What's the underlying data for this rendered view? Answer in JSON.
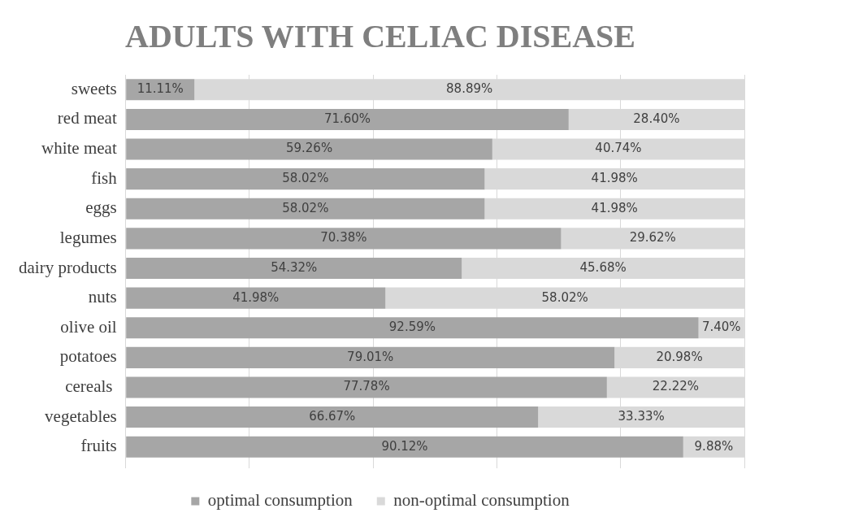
{
  "chart_data": {
    "type": "bar",
    "title": "ADULTS WITH CELIAC DISEASE",
    "orientation": "horizontal",
    "stacked": true,
    "categories": [
      "sweets",
      "red meat",
      "white meat",
      "fish",
      "eggs",
      "legumes",
      "dairy products",
      "nuts",
      "olive oil",
      "potatoes",
      "cereals ",
      "vegetables",
      "fruits"
    ],
    "series": [
      {
        "name": "optimal consumption",
        "color": "#a6a6a6",
        "values": [
          11.11,
          71.6,
          59.26,
          58.02,
          58.02,
          70.38,
          54.32,
          41.98,
          92.59,
          79.01,
          77.78,
          66.67,
          90.12
        ],
        "value_labels": [
          "11.11%",
          "71.60%",
          "59.26%",
          "58.02%",
          "58.02%",
          "70.38%",
          "54.32%",
          "41.98%",
          "92.59%",
          "79.01%",
          "77.78%",
          "66.67%",
          "90.12%"
        ]
      },
      {
        "name": "non-optimal consumption",
        "color": "#d9d9d9",
        "values": [
          88.89,
          28.4,
          40.74,
          41.98,
          41.98,
          29.62,
          45.68,
          58.02,
          7.4,
          20.98,
          22.22,
          33.33,
          9.88
        ],
        "value_labels": [
          "88.89%",
          "28.40%",
          "40.74%",
          "41.98%",
          "41.98%",
          "29.62%",
          "45.68%",
          "58.02%",
          "7.40%",
          "20.98%",
          "22.22%",
          "33.33%",
          "9.88%"
        ]
      }
    ],
    "xlim": [
      0,
      100
    ],
    "xticks": [
      {
        "value": 0,
        "label": null
      },
      {
        "value": 20,
        "label": null
      },
      {
        "value": 40,
        "label": null
      },
      {
        "value": 60,
        "label": null
      },
      {
        "value": 80,
        "label": null
      },
      {
        "value": 100,
        "label": null
      }
    ],
    "tick_labels": "y",
    "grid": "x",
    "legend": "bottom"
  }
}
